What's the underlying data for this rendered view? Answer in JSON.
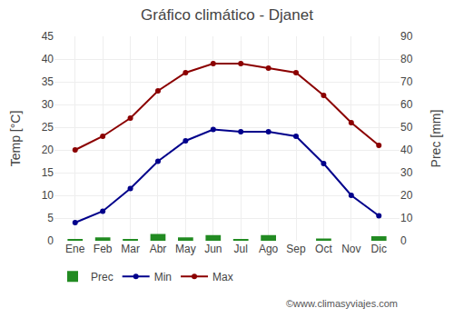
{
  "chart_data": {
    "type": "line",
    "title": "Gráfico climático - Djanet",
    "categories": [
      "Ene",
      "Feb",
      "Mar",
      "Abr",
      "May",
      "Jun",
      "Jul",
      "Ago",
      "Sep",
      "Oct",
      "Nov",
      "Dic"
    ],
    "series": [
      {
        "name": "Prec",
        "type": "bar",
        "axis": "y2",
        "color": "#228B22",
        "values": [
          0.5,
          1.5,
          0.5,
          3,
          1.5,
          2.5,
          0.5,
          2.5,
          0,
          1,
          0,
          2
        ]
      },
      {
        "name": "Min",
        "type": "line",
        "marker": "circle",
        "color": "#00008B",
        "values": [
          4,
          6.5,
          11.5,
          17.5,
          22,
          24.5,
          24,
          24,
          23,
          17,
          10,
          5.5
        ]
      },
      {
        "name": "Max",
        "type": "line",
        "marker": "circle",
        "color": "#8B0000",
        "values": [
          20,
          23,
          27,
          33,
          37,
          39,
          39,
          38,
          37,
          32,
          26,
          21
        ]
      }
    ],
    "ylabel": "Temp [°C]",
    "y2label": "Prec [mm]",
    "ylim": [
      0,
      45
    ],
    "yticks": [
      0,
      5,
      10,
      15,
      20,
      25,
      30,
      35,
      40,
      45
    ],
    "y2lim": [
      0,
      90
    ],
    "y2ticks": [
      0,
      10,
      20,
      30,
      40,
      50,
      60,
      70,
      80,
      90
    ],
    "grid": true,
    "legend": "bottom",
    "annotations": [
      "©www.climasyviajes.com"
    ]
  }
}
